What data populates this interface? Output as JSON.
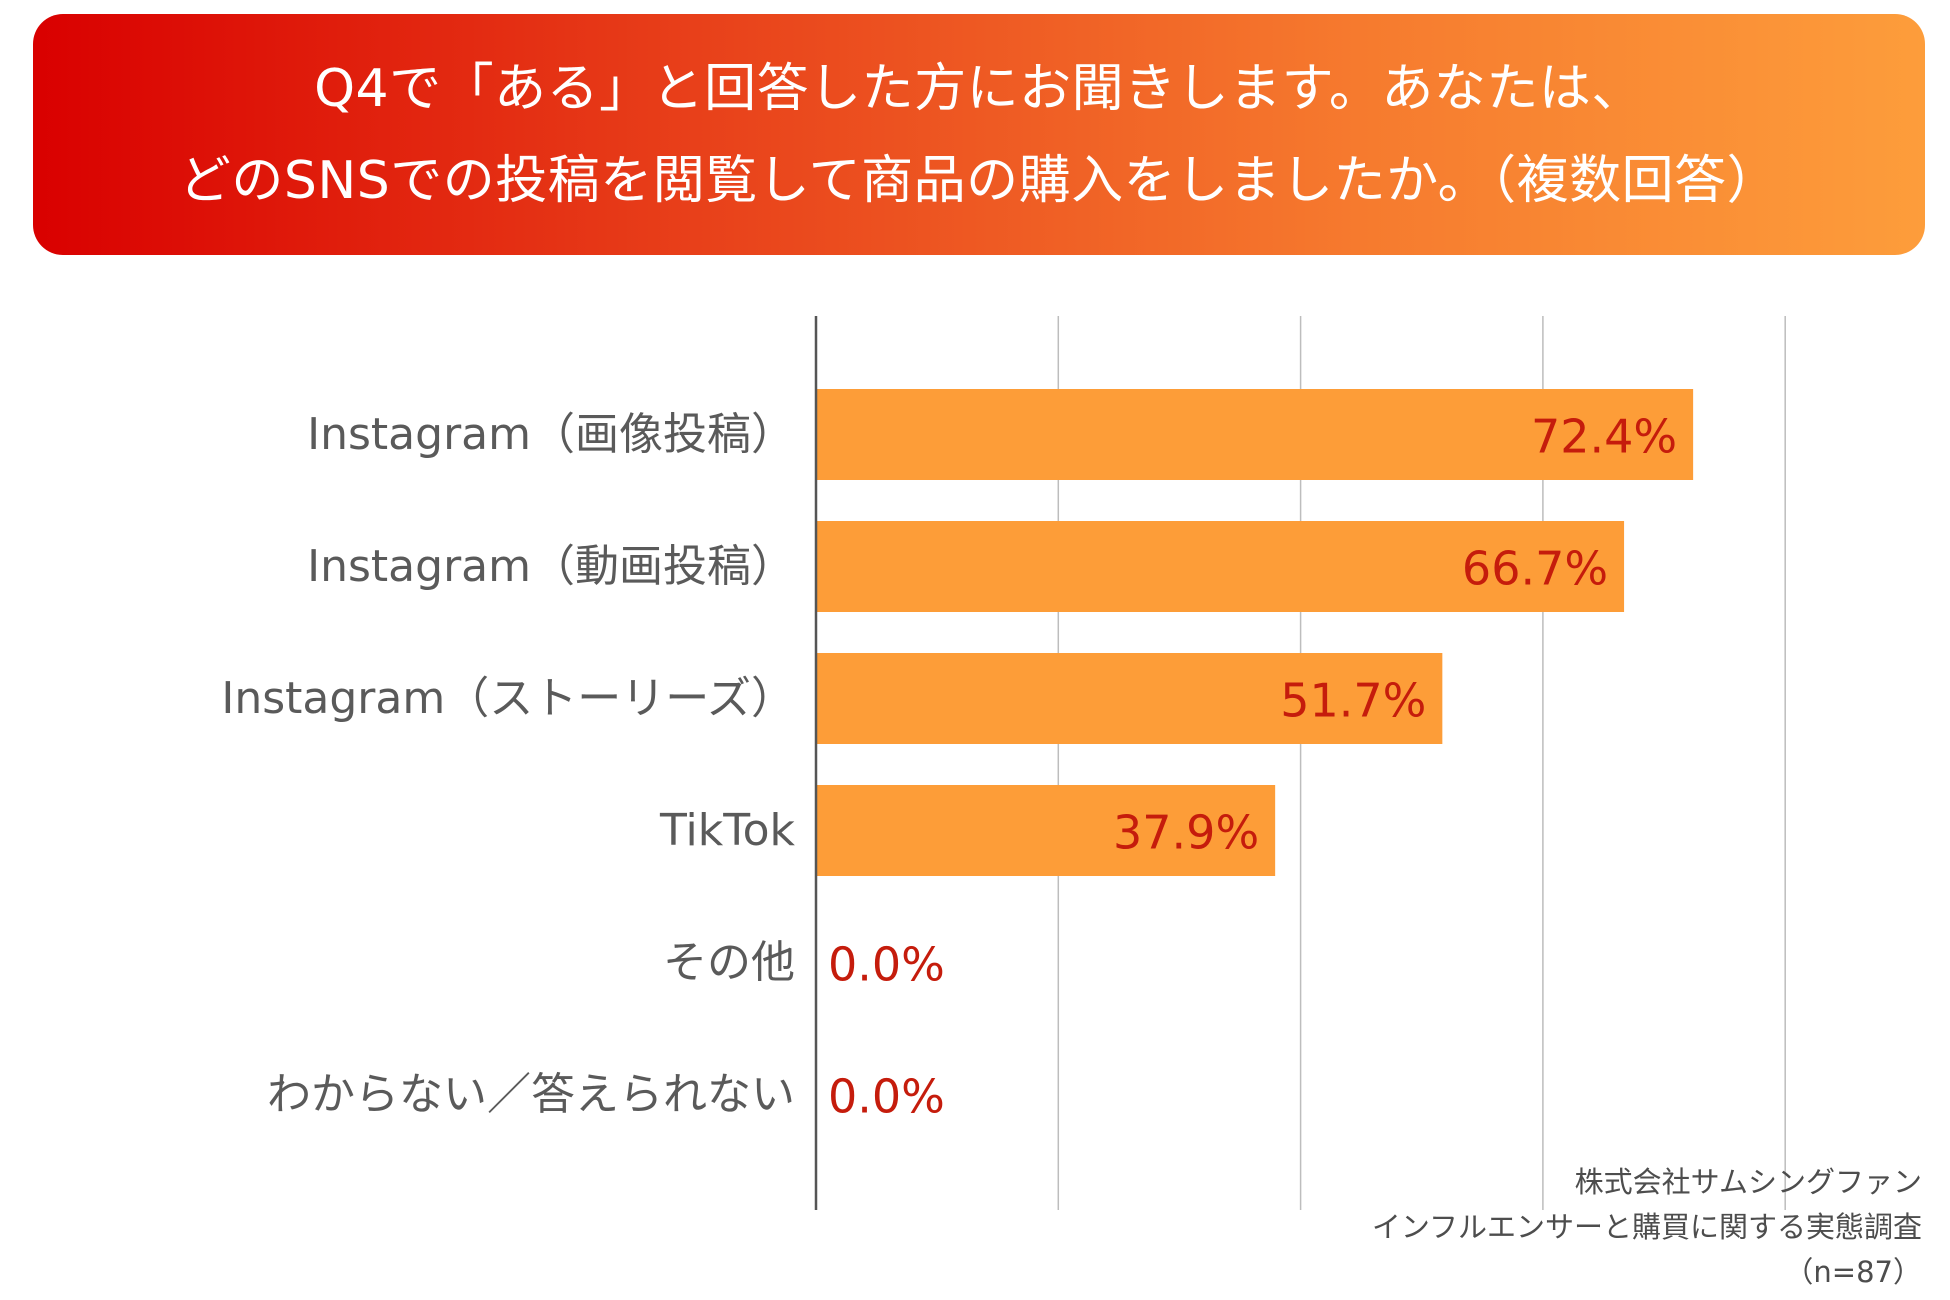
{
  "header": {
    "line1": "Q4で「ある」と回答した方にお聞きします。あなたは、",
    "line2": "どのSNSでの投稿を閲覧して商品の購入をしましたか。（複数回答）"
  },
  "chart_data": {
    "type": "bar",
    "orientation": "horizontal",
    "title": "Q4で「ある」と回答した方にお聞きします。あなたは、どのSNSでの投稿を閲覧して商品の購入をしましたか。（複数回答）",
    "categories": [
      "Instagram（画像投稿）",
      "Instagram（動画投稿）",
      "Instagram（ストーリーズ）",
      "TikTok",
      "その他",
      "わからない／答えられない"
    ],
    "values": [
      72.4,
      66.7,
      51.7,
      37.9,
      0.0,
      0.0
    ],
    "value_labels": [
      "72.4%",
      "66.7%",
      "51.7%",
      "37.9%",
      "0.0%",
      "0.0%"
    ],
    "xlim": [
      0,
      80
    ],
    "grid": true,
    "bar_color": "#fd9d38",
    "label_color": "#c51c0c"
  },
  "source": {
    "company": "株式会社サムシングファン",
    "survey": "インフルエンサーと購買に関する実態調査",
    "n": "（n=87）"
  },
  "colors": {
    "header_start": "#d90000",
    "header_end": "#fd9d3b",
    "bar": "#fd9d38",
    "value_text": "#c51c0c",
    "category_text": "#5a5a5a"
  }
}
